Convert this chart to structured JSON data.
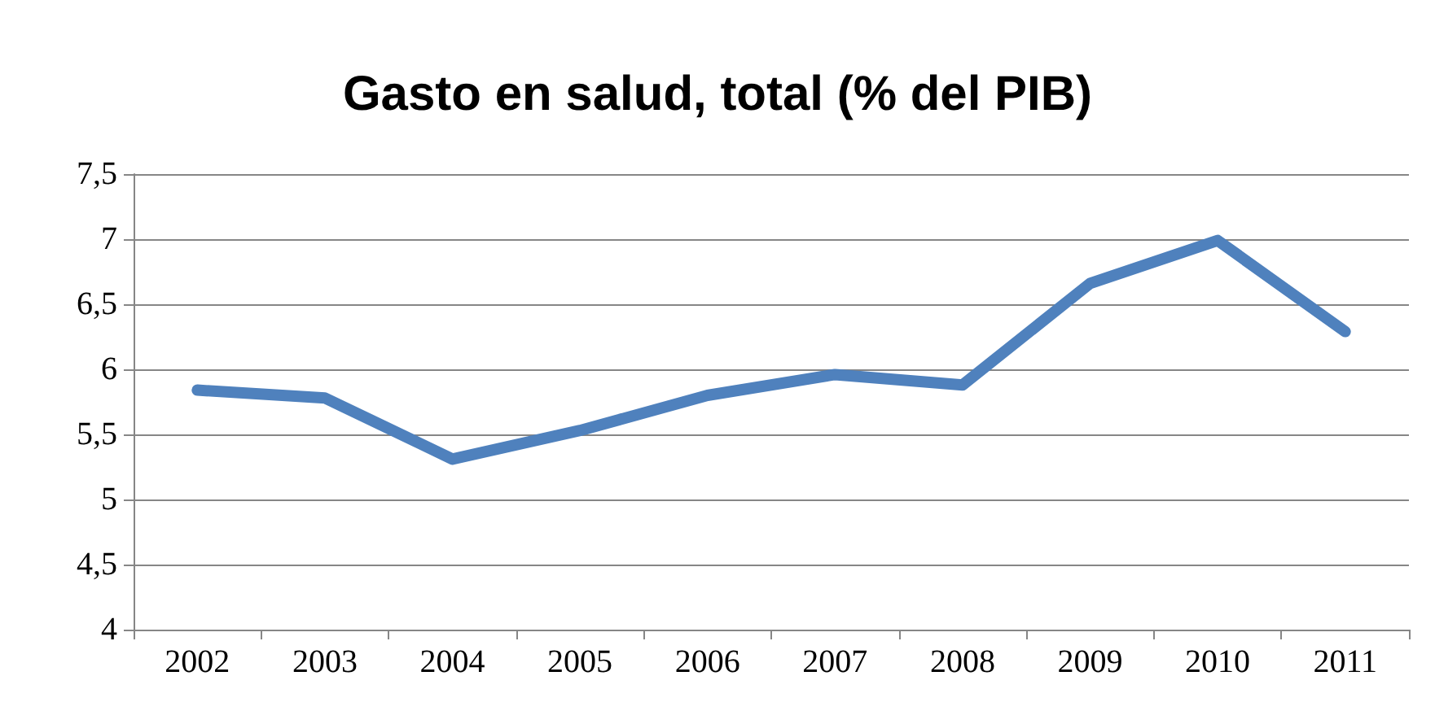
{
  "chart_data": {
    "type": "line",
    "title": "Gasto en salud, total (% del PIB)",
    "categories": [
      "2002",
      "2003",
      "2004",
      "2005",
      "2006",
      "2007",
      "2008",
      "2009",
      "2010",
      "2011"
    ],
    "series": [
      {
        "color": "#4f81bd",
        "values": [
          5.84,
          5.78,
          5.31,
          5.53,
          5.8,
          5.96,
          5.88,
          6.66,
          6.99,
          6.29
        ]
      }
    ],
    "ylim": [
      4,
      7.5
    ],
    "yticks": [
      4,
      {
        "value": 4.5,
        "label": "4,5"
      },
      5,
      {
        "value": 5.5,
        "label": "5,5"
      },
      6,
      {
        "value": 6.5,
        "label": "6,5"
      },
      7,
      {
        "value": 7.5,
        "label": "7,5"
      }
    ],
    "grid": "y",
    "line_style": "solid"
  }
}
